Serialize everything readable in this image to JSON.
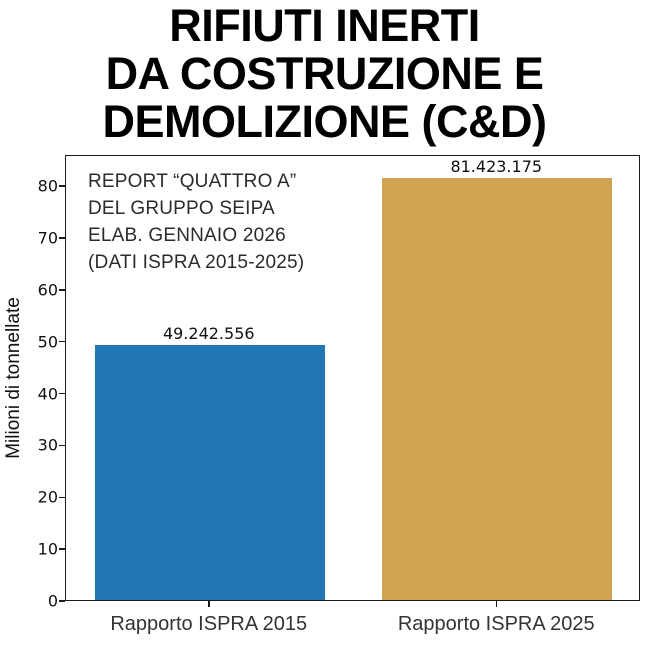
{
  "title": {
    "lines": [
      "RIFIUTI INERTI",
      "DA COSTRUZIONE E",
      "DEMOLIZIONE (C&D)"
    ]
  },
  "annotation": {
    "lines": [
      "REPORT “QUATTRO A”",
      "DEL GRUPPO SEIPA",
      "ELAB. GENNAIO 2026",
      "(DATI ISPRA 2015-2025)"
    ]
  },
  "chart_data": {
    "type": "bar",
    "title": "RIFIUTI INERTI DA COSTRUZIONE E DEMOLIZIONE (C&D)",
    "categories": [
      "Rapporto ISPRA 2015",
      "Rapporto ISPRA 2025"
    ],
    "values": [
      49242556,
      81423175
    ],
    "values_millions_tonnes": [
      49.242556,
      81.423175
    ],
    "value_labels": [
      "49.242.556",
      "81.423.175"
    ],
    "bar_colors": [
      "#2277b5",
      "#d0a450"
    ],
    "xlabel": "",
    "ylabel": "Milioni di tonnellate",
    "yticks": [
      0,
      10,
      20,
      30,
      40,
      50,
      60,
      70,
      80
    ],
    "ylim": [
      0,
      86
    ],
    "grid": false,
    "legend_position": "none",
    "annotation_text": "REPORT “QUATTRO A” DEL GRUPPO SEIPA ELAB. GENNAIO 2026 (DATI ISPRA 2015-2025)"
  },
  "colors": {
    "bar_2015": "#2277b5",
    "bar_2025": "#d0a450",
    "spine": "#1a1a1a",
    "title_text": "#000000",
    "annotation_text": "#2b2b2b",
    "tick_text": "#111111"
  }
}
